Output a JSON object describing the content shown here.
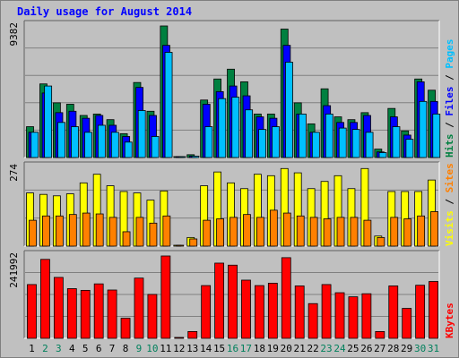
{
  "chart_data": {
    "type": "bar",
    "title": "Daily usage for August 2014",
    "categories": [
      "1",
      "2",
      "3",
      "4",
      "5",
      "6",
      "7",
      "8",
      "9",
      "10",
      "11",
      "12",
      "13",
      "14",
      "15",
      "16",
      "17",
      "18",
      "19",
      "20",
      "21",
      "22",
      "23",
      "24",
      "25",
      "26",
      "27",
      "28",
      "29",
      "30",
      "31"
    ],
    "weekend_days": [
      "2",
      "3",
      "9",
      "10",
      "16",
      "17",
      "23",
      "24",
      "30",
      "31"
    ],
    "colors": {
      "hits": "#008040",
      "files": "#0000ff",
      "pages": "#00c0ff",
      "visits": "#ffff00",
      "sites": "#ff8000",
      "kbytes": "#ff0000",
      "weekday_label": "#000000",
      "weekend_label": "#00805c",
      "plot_bg": "#c0c0c0",
      "grid": "#808080"
    },
    "panels": [
      {
        "id": "hits-files-pages",
        "ymax_label": "9382",
        "ymax": 9382,
        "series": [
          {
            "name": "Hits",
            "values": [
              2200,
              5250,
              3900,
              3800,
              3000,
              3100,
              2700,
              1700,
              5350,
              3300,
              9382,
              0,
              200,
              4100,
              5600,
              6300,
              5400,
              3100,
              3100,
              9160,
              3900,
              2400,
              4900,
              2900,
              2700,
              3200,
              600,
              3500,
              1900,
              5600,
              4800
            ]
          },
          {
            "name": "Files",
            "values": [
              1800,
              4600,
              3200,
              3300,
              2800,
              3000,
              2300,
              1500,
              5000,
              3000,
              8000,
              0,
              100,
              3800,
              4700,
              5100,
              4400,
              2900,
              2800,
              8000,
              3100,
              1800,
              3700,
              2500,
              2500,
              3000,
              400,
              2900,
              1600,
              5400,
              4000
            ]
          },
          {
            "name": "Pages",
            "values": [
              1800,
              5100,
              2500,
              2200,
              1800,
              2300,
              1800,
              1100,
              3350,
              1500,
              7500,
              0,
              100,
              2200,
              4200,
              4300,
              3400,
              2000,
              2200,
              6800,
              3100,
              1800,
              3100,
              2100,
              2000,
              1800,
              350,
              2200,
              1300,
              4000,
              3100
            ]
          }
        ],
        "right_labels": [
          {
            "text": "Hits",
            "color": "#008040"
          },
          {
            "text": "Files",
            "color": "#0000ff"
          },
          {
            "text": "Pages",
            "color": "#00c0ff"
          }
        ]
      },
      {
        "id": "visits-sites",
        "ymax_label": "274",
        "ymax": 274,
        "series": [
          {
            "name": "Visits",
            "values": [
              185,
              180,
              175,
              182,
              220,
              250,
              210,
              190,
              185,
              160,
              192,
              0,
              30,
              210,
              258,
              220,
              200,
              250,
              245,
              270,
              255,
              200,
              225,
              245,
              200,
              270,
              35,
              190,
              190,
              190,
              230
            ]
          },
          {
            "name": "Sites",
            "values": [
              90,
              105,
              105,
              110,
              115,
              112,
              100,
              50,
              100,
              80,
              105,
              0,
              25,
              90,
              95,
              100,
              110,
              100,
              125,
              115,
              105,
              100,
              95,
              100,
              100,
              90,
              30,
              100,
              95,
              105,
              120
            ]
          }
        ],
        "right_labels": [
          {
            "text": "Visits",
            "color": "#ffff00"
          },
          {
            "text": "Sites",
            "color": "#ff8000"
          }
        ]
      },
      {
        "id": "kbytes",
        "ymax_label": "241992",
        "ymax": 241992,
        "series": [
          {
            "name": "KBytes",
            "values": [
              158000,
              232000,
              179000,
              146000,
              141000,
              160000,
              142000,
              59000,
              177000,
              129000,
              241992,
              0,
              20000,
              155000,
              221000,
              215000,
              171000,
              155000,
              162000,
              237000,
              154000,
              102000,
              158000,
              134000,
              122000,
              131000,
              20000,
              154000,
              88000,
              156000,
              167000
            ]
          }
        ],
        "right_labels": [
          {
            "text": "KBytes",
            "color": "#ff0000"
          }
        ]
      }
    ]
  }
}
